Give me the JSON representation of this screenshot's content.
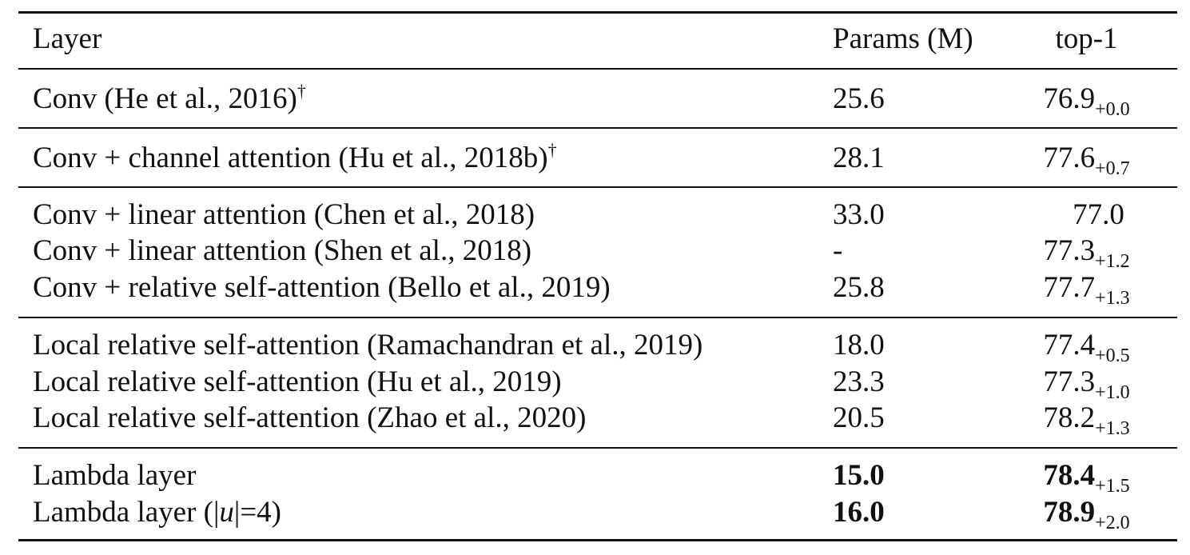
{
  "table": {
    "headers": {
      "layer": "Layer",
      "params": "Params (M)",
      "top1": "top-1"
    },
    "groups": [
      {
        "rows": [
          {
            "layer": "Conv (He et al., 2016)",
            "dagger": "†",
            "params": "25.6",
            "top1": "76.9",
            "delta": "+0.0"
          }
        ]
      },
      {
        "rows": [
          {
            "layer": "Conv + channel attention (Hu et al., 2018b)",
            "dagger": "†",
            "params": "28.1",
            "top1": "77.6",
            "delta": "+0.7"
          }
        ]
      },
      {
        "rows": [
          {
            "layer": "Conv + linear attention (Chen et al., 2018)",
            "params": "33.0",
            "top1": "77.0"
          },
          {
            "layer": "Conv + linear attention (Shen et al., 2018)",
            "params": "-",
            "top1": "77.3",
            "delta": "+1.2"
          },
          {
            "layer": "Conv + relative self-attention (Bello et al., 2019)",
            "params": "25.8",
            "top1": "77.7",
            "delta": "+1.3"
          }
        ]
      },
      {
        "rows": [
          {
            "layer": "Local relative self-attention (Ramachandran et al., 2019)",
            "params": "18.0",
            "top1": "77.4",
            "delta": "+0.5"
          },
          {
            "layer": "Local relative self-attention (Hu et al., 2019)",
            "params": "23.3",
            "top1": "77.3",
            "delta": "+1.0"
          },
          {
            "layer": "Local relative self-attention (Zhao et al., 2020)",
            "params": "20.5",
            "top1": "78.2",
            "delta": "+1.3"
          }
        ]
      },
      {
        "rows": [
          {
            "layer": "Lambda layer",
            "params": "15.0",
            "top1": "78.4",
            "delta": "+1.5",
            "bold": true
          },
          {
            "layer_prefix": "Lambda layer (|",
            "layer_var": "u",
            "layer_suffix": "|=4)",
            "params": "16.0",
            "top1": "78.9",
            "delta": "+2.0",
            "bold": true
          }
        ]
      }
    ]
  }
}
